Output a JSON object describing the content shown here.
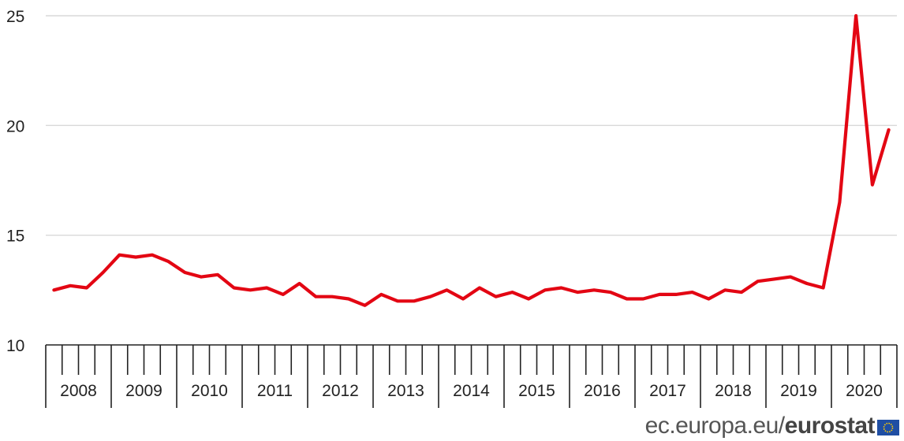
{
  "chart_data": {
    "type": "line",
    "ylim": [
      10,
      25
    ],
    "yticks": [
      10,
      15,
      20,
      25
    ],
    "year_labels": [
      "2008",
      "2009",
      "2010",
      "2011",
      "2012",
      "2013",
      "2014",
      "2015",
      "2016",
      "2017",
      "2018",
      "2019",
      "2020"
    ],
    "series": [
      {
        "color": "#e30613",
        "x": [
          "2008Q1",
          "2008Q2",
          "2008Q3",
          "2008Q4",
          "2009Q1",
          "2009Q2",
          "2009Q3",
          "2009Q4",
          "2010Q1",
          "2010Q2",
          "2010Q3",
          "2010Q4",
          "2011Q1",
          "2011Q2",
          "2011Q3",
          "2011Q4",
          "2012Q1",
          "2012Q2",
          "2012Q3",
          "2012Q4",
          "2013Q1",
          "2013Q2",
          "2013Q3",
          "2013Q4",
          "2014Q1",
          "2014Q2",
          "2014Q3",
          "2014Q4",
          "2015Q1",
          "2015Q2",
          "2015Q3",
          "2015Q4",
          "2016Q1",
          "2016Q2",
          "2016Q3",
          "2016Q4",
          "2017Q1",
          "2017Q2",
          "2017Q3",
          "2017Q4",
          "2018Q1",
          "2018Q2",
          "2018Q3",
          "2018Q4",
          "2019Q1",
          "2019Q2",
          "2019Q3",
          "2019Q4",
          "2020Q1",
          "2020Q2",
          "2020Q3",
          "2020Q4"
        ],
        "values": [
          12.5,
          12.7,
          12.6,
          13.3,
          14.1,
          14.0,
          14.1,
          13.8,
          13.3,
          13.1,
          13.2,
          12.6,
          12.5,
          12.6,
          12.3,
          12.8,
          12.2,
          12.2,
          12.1,
          11.8,
          12.3,
          12.0,
          12.0,
          12.2,
          12.5,
          12.1,
          12.6,
          12.2,
          12.4,
          12.1,
          12.5,
          12.6,
          12.4,
          12.5,
          12.4,
          12.1,
          12.1,
          12.3,
          12.3,
          12.4,
          12.1,
          12.5,
          12.4,
          12.9,
          13.0,
          13.1,
          12.8,
          12.6,
          16.5,
          25.0,
          17.3,
          19.8
        ]
      }
    ]
  },
  "source": {
    "url": "ec.europa.eu/",
    "brand": "eurostat"
  },
  "colors": {
    "line": "#e30613",
    "grid": "#d9d9d9",
    "flag": "#1f4ea3"
  }
}
